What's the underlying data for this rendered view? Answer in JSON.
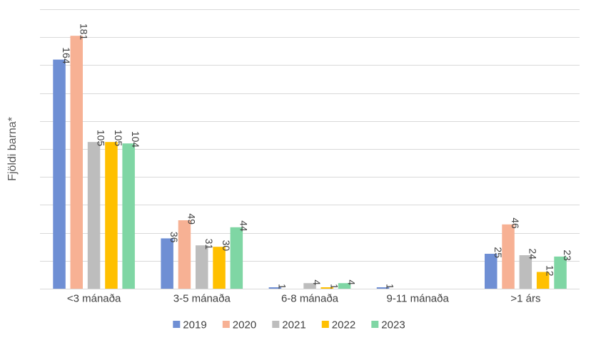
{
  "chart_data": {
    "type": "bar",
    "ylabel": "Fjöldi barna*",
    "ylim": [
      0,
      200
    ],
    "grid": true,
    "legend_position": "bottom",
    "categories": [
      "<3 mánaða",
      "3-5 mánaða",
      "6-8 mánaða",
      "9-11 mánaða",
      ">1 árs"
    ],
    "series": [
      {
        "name": "2019",
        "color": "#6f8fd4",
        "values": [
          164,
          36,
          1,
          1,
          25
        ]
      },
      {
        "name": "2020",
        "color": "#f7b194",
        "values": [
          181,
          49,
          null,
          null,
          46
        ]
      },
      {
        "name": "2021",
        "color": "#bdbdbd",
        "values": [
          105,
          31,
          4,
          null,
          24
        ]
      },
      {
        "name": "2022",
        "color": "#ffc000",
        "values": [
          105,
          30,
          1,
          null,
          12
        ]
      },
      {
        "name": "2023",
        "color": "#7fd6a4",
        "values": [
          104,
          44,
          4,
          null,
          23
        ]
      }
    ]
  }
}
